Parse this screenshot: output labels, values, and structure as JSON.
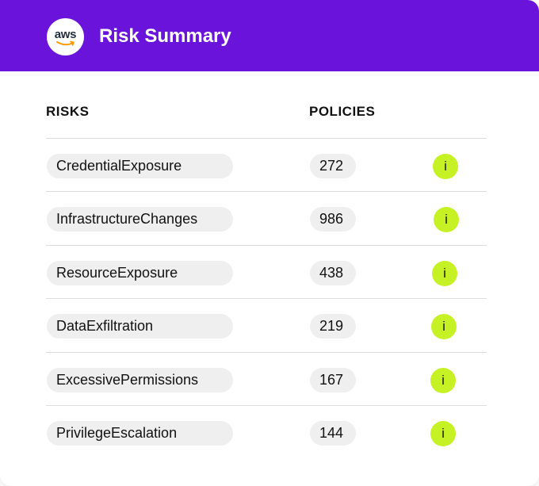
{
  "header": {
    "logo_text": "aws",
    "title": "Risk Summary",
    "background": "#6a14db"
  },
  "columns": {
    "risks": "RISKS",
    "policies": "POLICIES"
  },
  "rows": [
    {
      "risk": "CredentialExposure",
      "policies": "272",
      "info": "i"
    },
    {
      "risk": "InfrastructureChanges",
      "policies": "986",
      "info": "i"
    },
    {
      "risk": "ResourceExposure",
      "policies": "438",
      "info": "i"
    },
    {
      "risk": "DataExfiltration",
      "policies": "219",
      "info": "i"
    },
    {
      "risk": "ExcessivePermissions",
      "policies": "167",
      "info": "i"
    },
    {
      "risk": "PrivilegeEscalation",
      "policies": "144",
      "info": "i"
    }
  ],
  "colors": {
    "accent": "#c6f225",
    "pill": "#efefef"
  }
}
